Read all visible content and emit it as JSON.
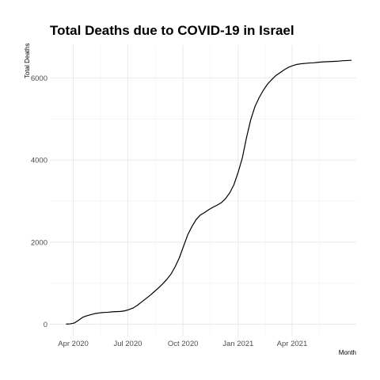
{
  "chart_data": {
    "type": "line",
    "title": "Total Deaths due to COVID-19 in Israel",
    "xlabel": "Month",
    "ylabel": "Total Deaths",
    "x_ticks": [
      "Apr 2020",
      "Jul 2020",
      "Oct 2020",
      "Jan 2021",
      "Apr 2021"
    ],
    "y_ticks": [
      "0",
      "2000",
      "4000",
      "6000"
    ],
    "ylim": [
      -300,
      6800
    ],
    "xlim": [
      "2020-02-22",
      "2021-07-17"
    ],
    "grid": true,
    "line_color": "#000000",
    "series": [
      {
        "x": [
          "2020-03-20",
          "2020-03-27",
          "2020-04-03",
          "2020-04-10",
          "2020-04-17",
          "2020-04-24",
          "2020-05-01",
          "2020-05-08",
          "2020-05-15",
          "2020-05-22",
          "2020-05-29",
          "2020-06-05",
          "2020-06-12",
          "2020-06-19",
          "2020-06-26",
          "2020-07-03",
          "2020-07-10",
          "2020-07-17",
          "2020-07-24",
          "2020-07-31",
          "2020-08-07",
          "2020-08-14",
          "2020-08-21",
          "2020-08-28",
          "2020-09-04",
          "2020-09-11",
          "2020-09-18",
          "2020-09-25",
          "2020-10-02",
          "2020-10-09",
          "2020-10-16",
          "2020-10-23",
          "2020-10-30",
          "2020-11-06",
          "2020-11-13",
          "2020-11-20",
          "2020-11-27",
          "2020-12-04",
          "2020-12-11",
          "2020-12-18",
          "2020-12-25",
          "2021-01-01",
          "2021-01-08",
          "2021-01-15",
          "2021-01-22",
          "2021-01-29",
          "2021-02-05",
          "2021-02-12",
          "2021-02-19",
          "2021-02-26",
          "2021-03-05",
          "2021-03-12",
          "2021-03-19",
          "2021-03-26",
          "2021-04-02",
          "2021-04-09",
          "2021-04-16",
          "2021-04-23",
          "2021-04-30",
          "2021-05-07",
          "2021-05-14",
          "2021-05-21",
          "2021-05-28",
          "2021-06-04",
          "2021-06-11",
          "2021-06-18",
          "2021-06-25",
          "2021-07-02",
          "2021-07-09"
        ],
        "y": [
          1,
          8,
          30,
          95,
          170,
          205,
          235,
          260,
          275,
          285,
          290,
          300,
          305,
          310,
          325,
          355,
          395,
          460,
          540,
          620,
          700,
          790,
          880,
          980,
          1090,
          1220,
          1400,
          1620,
          1900,
          2180,
          2380,
          2550,
          2660,
          2720,
          2790,
          2850,
          2900,
          2960,
          3060,
          3200,
          3400,
          3700,
          4050,
          4550,
          4980,
          5300,
          5520,
          5700,
          5850,
          5960,
          6060,
          6130,
          6200,
          6260,
          6300,
          6330,
          6345,
          6355,
          6365,
          6370,
          6380,
          6390,
          6395,
          6400,
          6405,
          6410,
          6420,
          6425,
          6430
        ]
      }
    ]
  }
}
